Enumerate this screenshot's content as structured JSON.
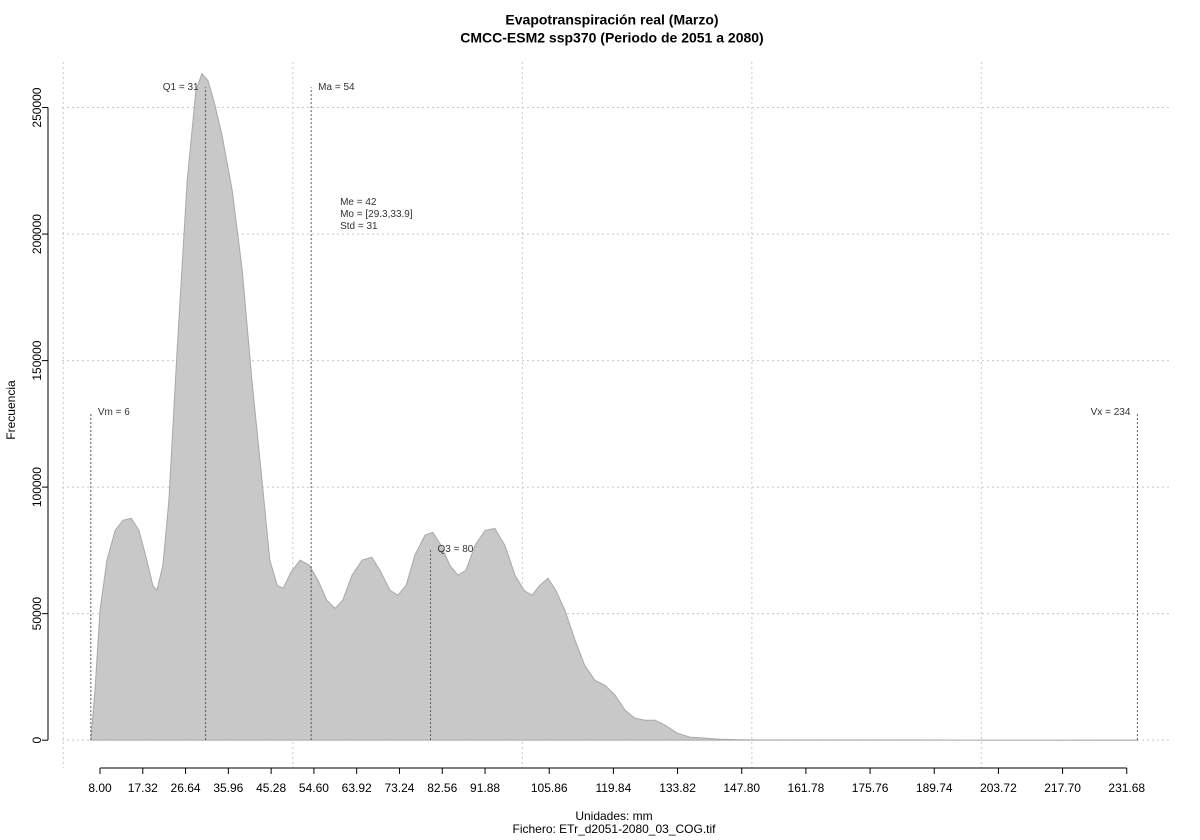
{
  "chart_data": {
    "type": "area",
    "title": "Evapotranspiración real (Marzo)",
    "subtitle": "CMCC-ESM2 ssp370 (Periodo de 2051 a 2080)",
    "y_label": "Frecuencia",
    "x_label": "Unidades: mm",
    "caption": "Fichero: ETr_d2051-2080_03_COG.tif",
    "color": "#c8c8c8",
    "x": [
      6.0,
      6.9,
      8.0,
      9.5,
      11.3,
      13.0,
      14.8,
      16.5,
      18.2,
      19.5,
      20.4,
      21.7,
      23.0,
      24.8,
      27.0,
      28.9,
      30.2,
      31.5,
      32.8,
      34.6,
      36.8,
      39.0,
      41.1,
      43.3,
      45.0,
      46.6,
      47.9,
      49.6,
      51.6,
      53.6,
      55.5,
      57.4,
      59.2,
      60.9,
      62.9,
      65.1,
      67.2,
      69.0,
      71.2,
      72.9,
      74.7,
      76.6,
      78.8,
      80.5,
      82.3,
      84.2,
      86.0,
      87.7,
      89.7,
      91.9,
      94.0,
      96.2,
      98.4,
      100.4,
      102.1,
      103.8,
      105.6,
      107.3,
      109.3,
      111.5,
      113.6,
      115.8,
      118.0,
      120.2,
      122.4,
      124.5,
      126.7,
      128.9,
      131.1,
      133.7,
      136.5,
      139.8,
      143.0,
      147.4,
      151.8,
      200.0,
      234.0
    ],
    "values": [
      0,
      19700,
      51300,
      71100,
      82900,
      86900,
      87700,
      82900,
      71100,
      61200,
      59200,
      69100,
      94800,
      154000,
      221200,
      256700,
      263400,
      260700,
      252800,
      238900,
      217200,
      185600,
      142200,
      102700,
      71100,
      61200,
      60000,
      66400,
      71100,
      69100,
      63200,
      55300,
      52100,
      55300,
      65200,
      71100,
      72300,
      67100,
      59200,
      57300,
      61200,
      73100,
      81000,
      82100,
      77000,
      69100,
      65200,
      67100,
      77000,
      82900,
      83700,
      77000,
      65200,
      59200,
      57300,
      61200,
      64000,
      59200,
      51300,
      39500,
      29600,
      23700,
      21700,
      17800,
      11800,
      8700,
      7900,
      7900,
      5900,
      2800,
      1200,
      800,
      400,
      200,
      50,
      20,
      0
    ],
    "xlim": [
      -0.28,
      241.1
    ],
    "ylim": [
      -11000,
      268000
    ],
    "xticks": [
      {
        "value": 8,
        "label": "8.00"
      },
      17.32,
      26.64,
      35.96,
      45.28,
      {
        "value": 54.6,
        "label": "54.60"
      },
      63.92,
      73.24,
      82.56,
      91.88,
      105.86,
      119.84,
      133.82,
      {
        "value": 147.8,
        "label": "147.80"
      },
      161.78,
      175.76,
      189.74,
      203.72,
      {
        "value": 217.7,
        "label": "217.70"
      },
      231.68
    ],
    "yticks": [
      0,
      50000,
      100000,
      150000,
      200000,
      250000
    ],
    "xgrid": [
      0,
      50,
      100,
      150,
      200
    ],
    "grid": true,
    "annotations": [
      {
        "text": "Vm = 6",
        "x": 6,
        "y": 129500,
        "side": "right"
      },
      {
        "text": "Q1 = 31",
        "x": 31,
        "y": 258000,
        "side": "left"
      },
      {
        "text": "Ma = 54",
        "x": 54,
        "y": 258000,
        "side": "right"
      },
      {
        "text": "Q3 = 80",
        "x": 80,
        "y": 75400,
        "side": "right"
      },
      {
        "text": "Vx = 234",
        "x": 234,
        "y": 129500,
        "side": "left"
      }
    ],
    "notes": [
      {
        "text": "Me = 42",
        "x": 60.3,
        "y": 212500
      },
      {
        "text": "Mo = [29.3,33.9]",
        "x": 60.3,
        "y": 207700
      },
      {
        "text": "Std = 31",
        "x": 60.3,
        "y": 203000
      }
    ]
  }
}
